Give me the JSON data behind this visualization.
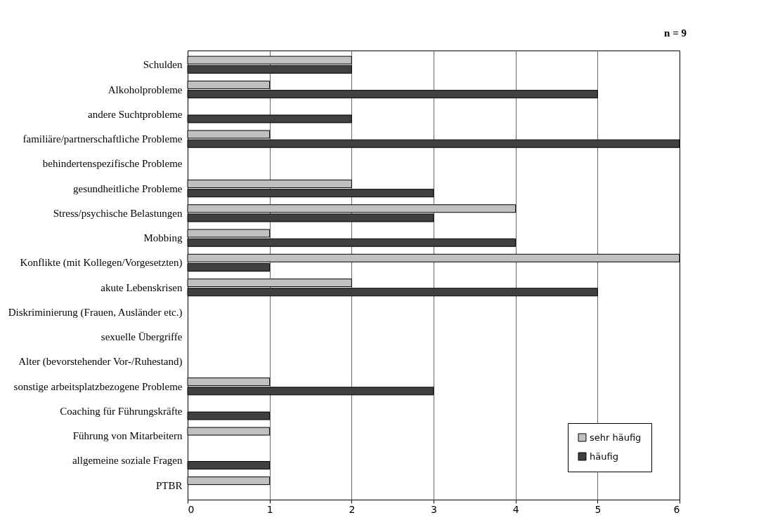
{
  "chart_data": {
    "type": "bar",
    "orientation": "horizontal",
    "annotations": [
      "n = 9"
    ],
    "categories": [
      "Schulden",
      "Alkoholprobleme",
      "andere Suchtprobleme",
      "familiäre/partnerschaftliche Probleme",
      "behindertenspezifische Probleme",
      "gesundheitliche Probleme",
      "Stress/psychische Belastungen",
      "Mobbing",
      "Konflikte (mit Kollegen/Vorgesetzten)",
      "akute Lebenskrisen",
      "Diskriminierung (Frauen, Ausländer etc.)",
      "sexuelle Übergriffe",
      "Alter (bevorstehender Vor-/Ruhestand)",
      "sonstige arbeitsplatzbezogene Probleme",
      "Coaching für Führungskräfte",
      "Führung von Mitarbeitern",
      "allgemeine soziale Fragen",
      "PTBR"
    ],
    "series": [
      {
        "name": "sehr häufig",
        "color": "#c0c0c0",
        "values": [
          2,
          1,
          0,
          1,
          0,
          2,
          4,
          1,
          6,
          2,
          0,
          0,
          0,
          1,
          0,
          1,
          0,
          1
        ]
      },
      {
        "name": "häufig",
        "color": "#404040",
        "values": [
          2,
          5,
          2,
          6,
          0,
          3,
          3,
          4,
          1,
          5,
          0,
          0,
          0,
          3,
          1,
          0,
          1,
          0
        ]
      }
    ],
    "xlim": [
      0,
      6
    ],
    "xticks": [
      0,
      1,
      2,
      3,
      4,
      5,
      6
    ],
    "grid": "x",
    "legend": "bottom right"
  }
}
